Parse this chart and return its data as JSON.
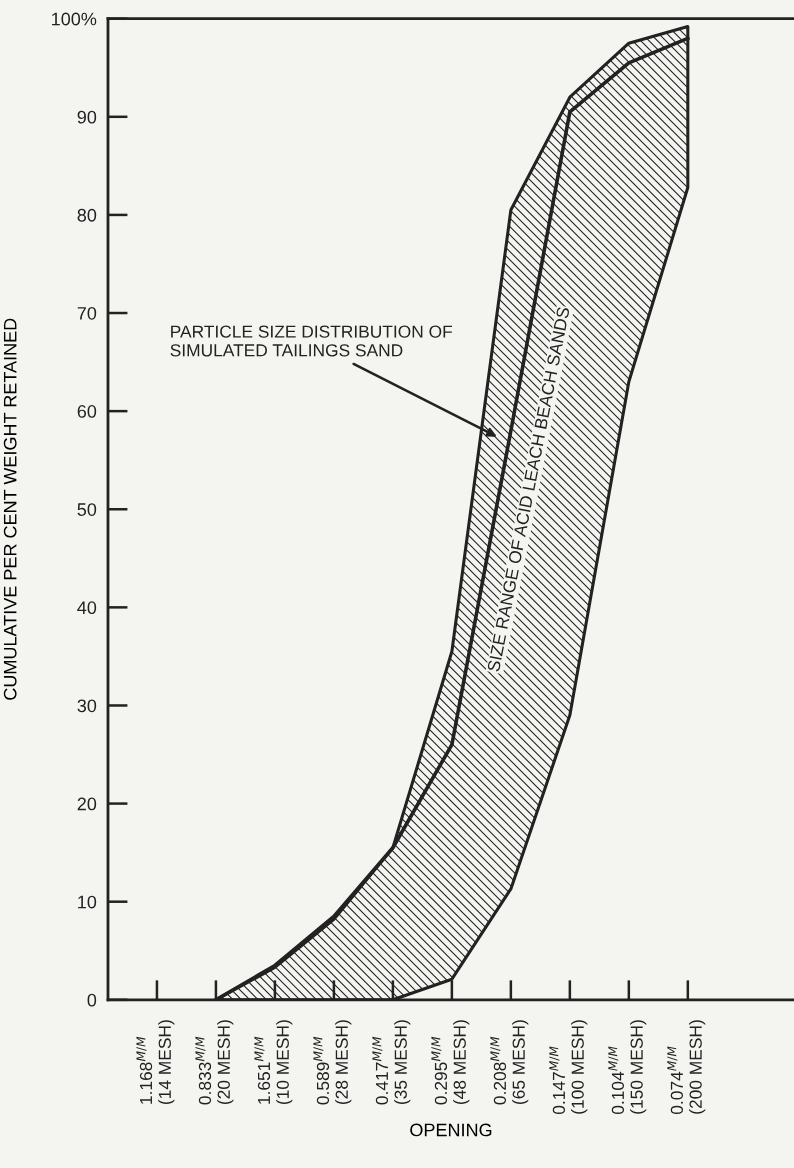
{
  "chart_data": {
    "type": "line",
    "xlabel": "OPENING",
    "ylabel": "CUMULATIVE PER CENT WEIGHT RETAINED",
    "ylim": [
      0,
      100
    ],
    "categories": [
      "1.168$^{M/M}$\n(14 MESH)",
      "0.833$^{M/M}$\n(20 MESH)",
      "1.651$^{M/M}$\n(10 MESH)",
      "0.589$^{M/M}$\n(28 MESH)",
      "0.417$^{M/M}$\n(35 MESH)",
      "0.295$^{M/M}$\n(48 MESH)",
      "0.208$^{M/M}$\n(65 MESH)",
      "0.147$^{M/M}$\n(100 MESH)",
      "0.104$^{M/M}$\n(150 MESH)",
      "0.074$^{M/M}$\n(200 MESH)"
    ],
    "yticks": [
      0,
      10,
      20,
      30,
      40,
      50,
      60,
      70,
      80,
      90,
      {
        "value": 100,
        "label": "100%"
      }
    ],
    "grid": false,
    "series": [
      {
        "type": "line",
        "color": "#222222",
        "values": [
          null,
          0,
          3.5,
          8.5,
          15.5,
          26,
          58,
          90.5,
          95.5,
          98
        ],
        "upper": [
          null,
          0,
          3.3,
          8.2,
          15.5,
          35.5,
          80.5,
          92,
          97.5,
          99.2
        ],
        "lower": [
          null,
          0,
          0,
          0,
          0,
          2.1,
          11.3,
          29,
          63,
          82.8
        ]
      }
    ],
    "annotations": [
      "PARTICLE SIZE DISTRIBUTION OF\nSIMULATED TAILINGS SAND",
      "SIZE RANGE OF ACID LEACH BEACH SANDS"
    ]
  }
}
